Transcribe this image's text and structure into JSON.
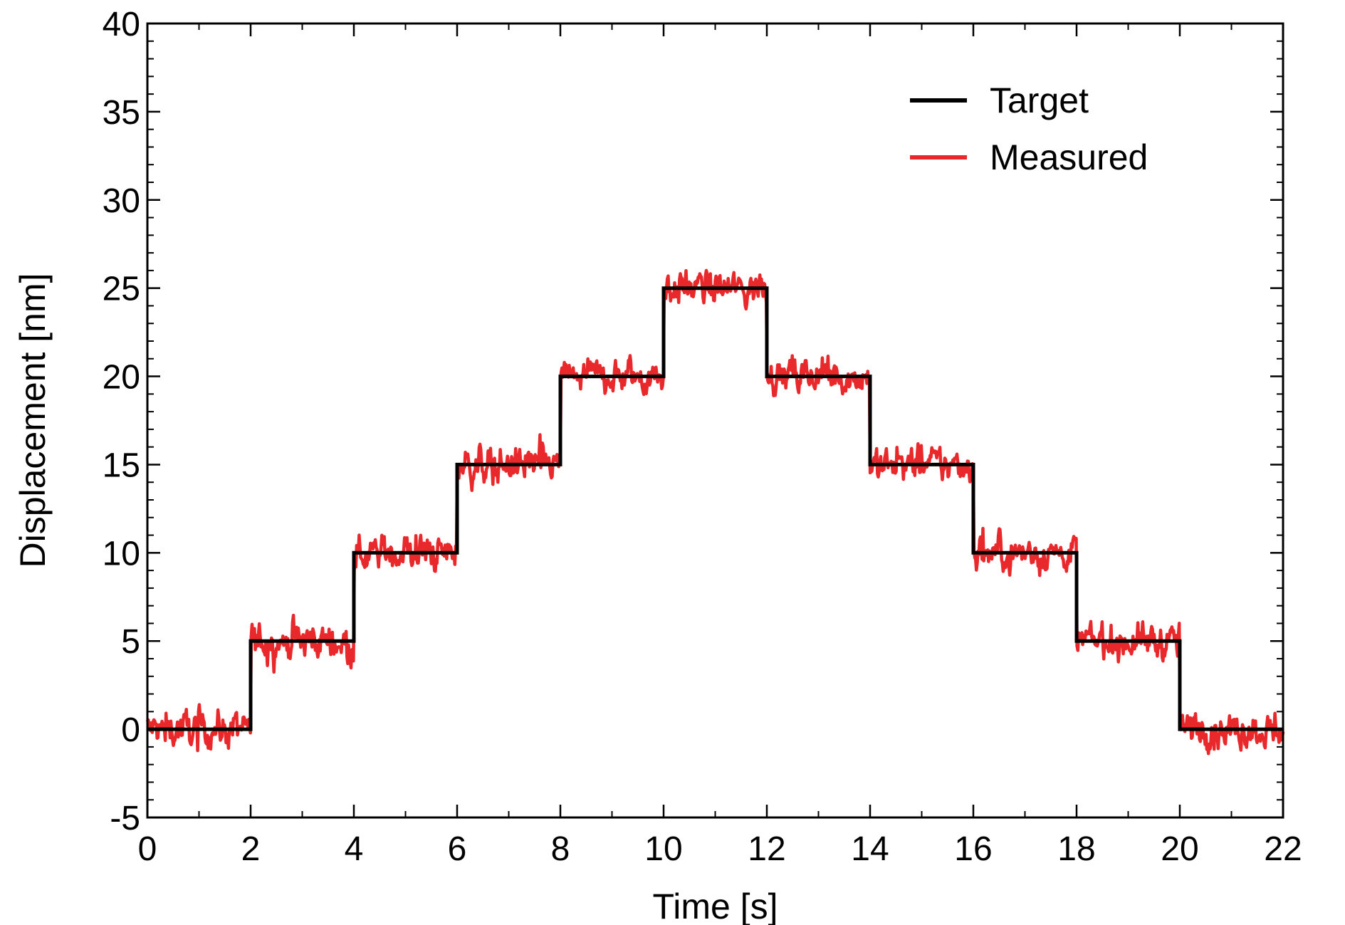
{
  "chart_data": {
    "type": "line",
    "xlabel": "Time [s]",
    "ylabel": "Displacement [nm]",
    "xlim": [
      0,
      22
    ],
    "ylim": [
      -5,
      40
    ],
    "xticks": [
      0,
      2,
      4,
      6,
      8,
      10,
      12,
      14,
      16,
      18,
      20,
      22
    ],
    "yticks": [
      -5,
      0,
      5,
      10,
      15,
      20,
      25,
      30,
      35,
      40
    ],
    "grid": false,
    "legend_position": "top-right",
    "series": [
      {
        "name": "Target",
        "color": "#000000",
        "step": true,
        "x": [
          0,
          2,
          4,
          6,
          8,
          10,
          12,
          14,
          16,
          18,
          20,
          22
        ],
        "y": [
          0,
          5,
          10,
          15,
          20,
          25,
          20,
          15,
          10,
          5,
          0,
          0
        ]
      },
      {
        "name": "Measured",
        "color": "#e8282b",
        "noisy": true,
        "noise_amplitude": 0.6,
        "x": [
          0,
          2,
          4,
          6,
          8,
          10,
          12,
          14,
          16,
          18,
          20,
          22
        ],
        "y": [
          0,
          5,
          10,
          15,
          20,
          25,
          20,
          15,
          10,
          5,
          0,
          0
        ]
      }
    ]
  }
}
